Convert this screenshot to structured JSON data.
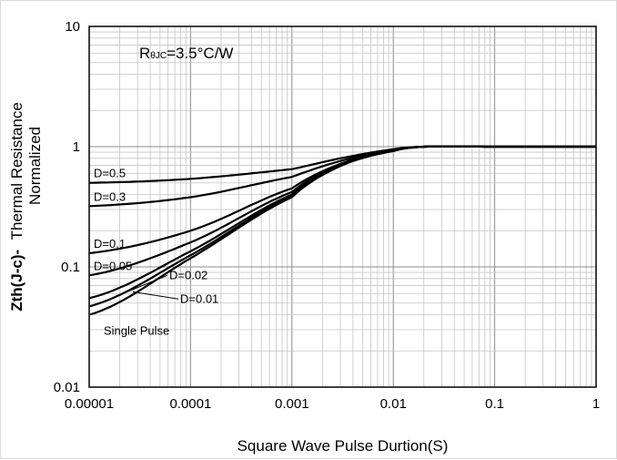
{
  "chart_data": {
    "type": "line",
    "title": "",
    "xlabel": "Square Wave Pulse Durtion(S)",
    "ylabel_bold": "Zth(J-c)-",
    "ylabel_line1": "Thermal Resistance",
    "ylabel_line2": "Normalized",
    "xscale": "log",
    "yscale": "log",
    "xlim": [
      1e-05,
      1
    ],
    "ylim": [
      0.01,
      10
    ],
    "grid": true,
    "x_tick_labels": [
      "0.00001",
      "0.0001",
      "0.001",
      "0.01",
      "0.1",
      "1"
    ],
    "y_tick_labels": [
      "0.01",
      "0.1",
      "1",
      "10"
    ],
    "annotation": {
      "main": "R",
      "sub": "θJC",
      "rest": "=3.5°C/W"
    },
    "series": [
      {
        "name": "D=0.5",
        "x": [
          1e-05,
          0.0001,
          0.001,
          0.003,
          0.01,
          0.02,
          0.1,
          1
        ],
        "y": [
          0.5,
          0.54,
          0.65,
          0.8,
          0.95,
          1.0,
          1.0,
          1.0
        ]
      },
      {
        "name": "D=0.3",
        "x": [
          1e-05,
          0.0001,
          0.001,
          0.003,
          0.01,
          0.02,
          0.1,
          1
        ],
        "y": [
          0.32,
          0.38,
          0.56,
          0.76,
          0.94,
          1.0,
          1.0,
          1.0
        ]
      },
      {
        "name": "D=0.1",
        "x": [
          1e-05,
          0.0001,
          0.001,
          0.003,
          0.01,
          0.02,
          0.1,
          1
        ],
        "y": [
          0.13,
          0.2,
          0.45,
          0.72,
          0.93,
          1.0,
          1.0,
          1.0
        ]
      },
      {
        "name": "D=0.05",
        "x": [
          1e-05,
          0.0001,
          0.001,
          0.003,
          0.01,
          0.02,
          0.1,
          1
        ],
        "y": [
          0.085,
          0.16,
          0.42,
          0.71,
          0.93,
          1.0,
          1.0,
          1.0
        ]
      },
      {
        "name": "D=0.02",
        "x": [
          1e-05,
          0.0001,
          0.001,
          0.003,
          0.01,
          0.02,
          0.1,
          1
        ],
        "y": [
          0.055,
          0.135,
          0.4,
          0.7,
          0.92,
          1.0,
          1.0,
          1.0
        ]
      },
      {
        "name": "D=0.01",
        "x": [
          1e-05,
          0.0001,
          0.001,
          0.003,
          0.01,
          0.02,
          0.1,
          1
        ],
        "y": [
          0.047,
          0.125,
          0.39,
          0.7,
          0.92,
          1.0,
          1.0,
          1.0
        ]
      },
      {
        "name": "Single Pulse",
        "x": [
          1e-05,
          0.0001,
          0.001,
          0.003,
          0.01,
          0.02,
          0.1,
          1
        ],
        "y": [
          0.04,
          0.118,
          0.38,
          0.69,
          0.92,
          1.0,
          1.0,
          1.0
        ]
      }
    ]
  }
}
